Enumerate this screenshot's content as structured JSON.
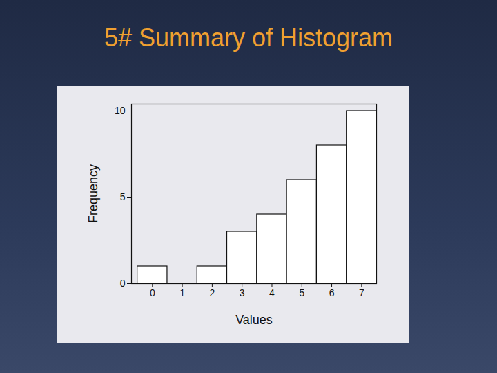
{
  "chart_data": {
    "type": "histogram",
    "title": "5# Summary of Histogram",
    "x_label": "Values",
    "y_label": "Frequency",
    "bins": [
      -0.5,
      0.5,
      1.5,
      2.5,
      3.5,
      4.5,
      5.5,
      6.5,
      7.5
    ],
    "values": [
      1,
      0,
      1,
      3,
      4,
      6,
      8,
      10
    ],
    "color": "#ffffff",
    "xlim": [
      -0.7,
      7.5
    ],
    "xticks": [
      0,
      1,
      2,
      3,
      4,
      5,
      6,
      7
    ],
    "ylim": [
      0,
      10.4
    ],
    "yticks": [
      0,
      5,
      10
    ],
    "grid": false
  }
}
